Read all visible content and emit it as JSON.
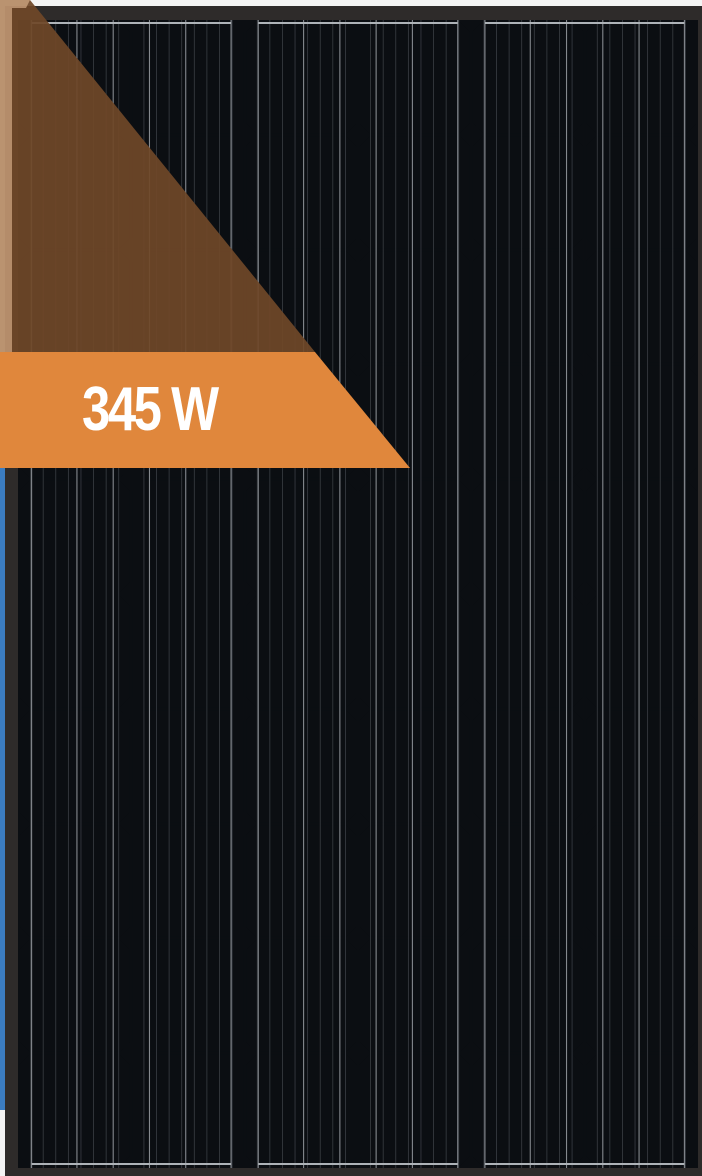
{
  "badge": {
    "wattage": "345 W",
    "color": "#e0873c",
    "fold_color": "#6f4728"
  },
  "panel": {
    "frame_color": "#2e2b2a",
    "cell_color": "#0b0e12",
    "busbar_color": "#aeb3b8",
    "cell_columns": 6,
    "cell_rows": 10
  },
  "background": {
    "left_strip_color": "#3b7cc0",
    "page_color": "#f4f4f4"
  }
}
